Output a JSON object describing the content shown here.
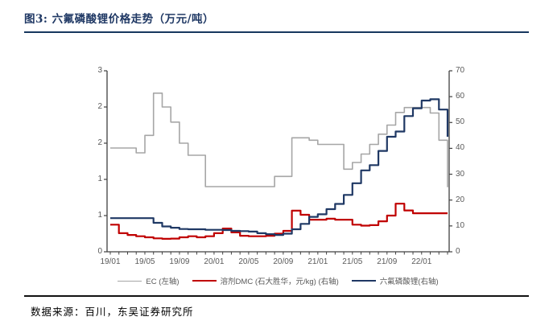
{
  "page": {
    "title": "图3:  六氟磷酸锂价格走势（万元/吨）",
    "source": "数据来源：百川，东吴证券研究所"
  },
  "colors": {
    "title": "#1F3864",
    "top_rule": "#17375E",
    "bottom_rule": "#111111",
    "axis_line": "#404040",
    "tick_label": "#595959",
    "series_ec": "#A6A6A6",
    "series_dmc": "#C00000",
    "series_lipf6": "#1F3864"
  },
  "chart_data": {
    "type": "line",
    "style": "step-after",
    "grid": false,
    "legend_position": "bottom-center",
    "x": [
      "19/01",
      "19/02",
      "19/03",
      "19/04",
      "19/05",
      "19/06",
      "19/07",
      "19/08",
      "19/09",
      "19/10",
      "19/11",
      "19/12",
      "20/01",
      "20/02",
      "20/03",
      "20/04",
      "20/05",
      "20/06",
      "20/07",
      "20/08",
      "20/09",
      "20/10",
      "20/11",
      "20/12",
      "21/01",
      "21/02",
      "21/03",
      "21/04",
      "21/05",
      "21/06",
      "21/07",
      "21/08",
      "21/09",
      "21/10",
      "21/11",
      "21/12",
      "22/01",
      "22/02",
      "22/03",
      "22/04"
    ],
    "x_major_tick_labels": [
      "19/01",
      "19/05",
      "19/09",
      "20/01",
      "20/05",
      "20/09",
      "21/01",
      "21/05",
      "21/09",
      "22/01"
    ],
    "left_axis": {
      "min": 0,
      "max": 3,
      "tick_values": [
        3,
        2.4,
        1.8,
        1.2,
        0.6,
        0
      ],
      "tick_labels": [
        "3",
        "2",
        "2",
        "1",
        "1",
        "0"
      ]
    },
    "right_axis": {
      "min": 0,
      "max": 70,
      "tick_values": [
        70,
        60,
        50,
        40,
        30,
        20,
        10,
        0
      ],
      "tick_labels": [
        "70",
        "60",
        "50",
        "40",
        "30",
        "20",
        "10",
        "0"
      ]
    },
    "series": [
      {
        "name": "EC (左轴)",
        "axis": "left",
        "color": "#A6A6A6",
        "stroke_width": 1.6,
        "values": [
          1.72,
          1.72,
          1.72,
          1.64,
          1.93,
          2.63,
          2.4,
          2.15,
          1.8,
          1.6,
          1.6,
          1.08,
          1.08,
          1.08,
          1.08,
          1.08,
          1.08,
          1.08,
          1.08,
          1.25,
          1.25,
          1.89,
          1.89,
          1.85,
          1.78,
          1.78,
          1.78,
          1.37,
          1.48,
          1.62,
          1.78,
          1.95,
          2.1,
          2.31,
          2.39,
          2.39,
          2.39,
          2.3,
          1.85,
          1.07
        ]
      },
      {
        "name": "溶剂DMC (石大胜华，元/kg) (右轴)",
        "axis": "right",
        "color": "#C00000",
        "stroke_width": 2.2,
        "values": [
          10.5,
          7.2,
          6.5,
          6.0,
          5.6,
          5.2,
          5.0,
          5.1,
          5.6,
          6.0,
          5.6,
          6.0,
          7.2,
          9.0,
          7.5,
          6.2,
          6.0,
          6.0,
          6.2,
          7.0,
          8.1,
          15.9,
          14.3,
          12.4,
          12.4,
          12.8,
          12.4,
          12.4,
          10.5,
          10.1,
          10.3,
          11.8,
          14.0,
          18.6,
          16.0,
          14.9,
          14.9,
          14.9,
          14.9,
          14.9
        ]
      },
      {
        "name": "六氟磷酸锂(右轴)",
        "axis": "right",
        "color": "#1F3864",
        "stroke_width": 2.2,
        "values": [
          13.0,
          13.0,
          13.0,
          13.0,
          13.0,
          11.2,
          9.8,
          9.3,
          8.8,
          8.7,
          8.7,
          8.5,
          8.5,
          8.4,
          8.1,
          8.0,
          7.8,
          7.2,
          6.8,
          6.5,
          7.0,
          8.7,
          10.8,
          13.5,
          14.5,
          16.5,
          18.5,
          22.0,
          26.5,
          31.5,
          33.5,
          39.0,
          44.5,
          46.5,
          52.5,
          55.5,
          58.5,
          59.0,
          55.0,
          44.5
        ]
      }
    ]
  }
}
